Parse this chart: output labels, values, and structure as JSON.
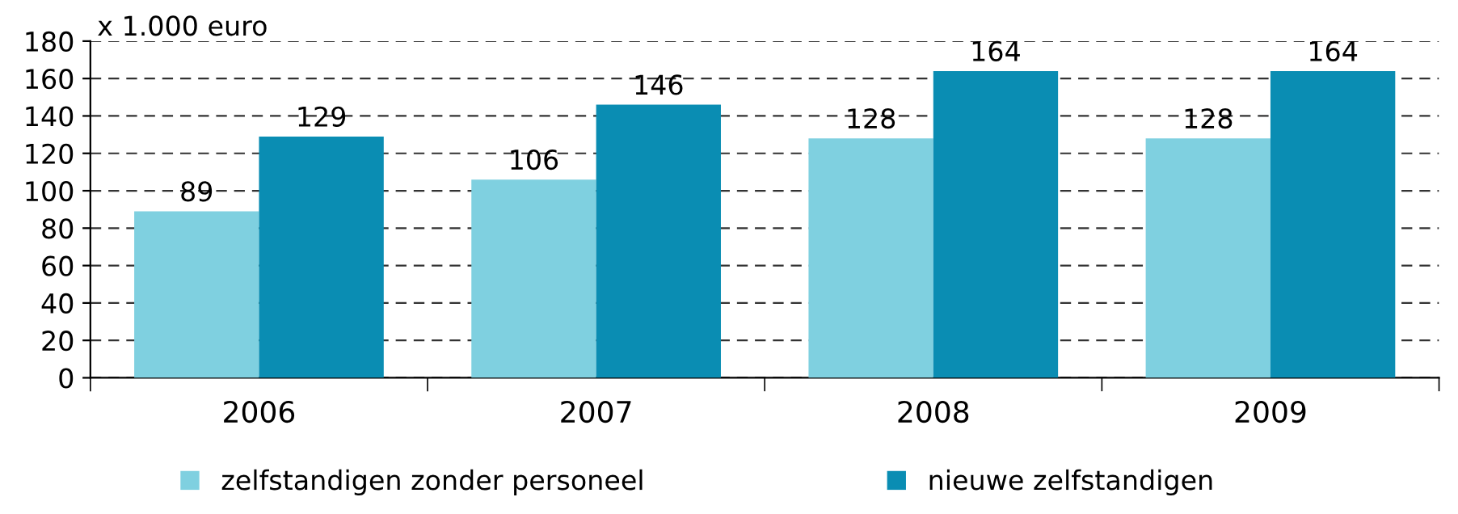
{
  "chart_data": {
    "type": "bar",
    "ylabel": "x 1.000 euro",
    "categories": [
      "2006",
      "2007",
      "2008",
      "2009"
    ],
    "series": [
      {
        "name": "zelfstandigen zonder personeel",
        "color": "#7fd0e0",
        "values": [
          89,
          106,
          128,
          128
        ]
      },
      {
        "name": "nieuwe zelfstandigen",
        "color": "#0a8db3",
        "values": [
          129,
          146,
          164,
          164
        ]
      }
    ],
    "ylim": [
      0,
      180
    ],
    "yticks": [
      0,
      20,
      40,
      60,
      80,
      100,
      120,
      140,
      160,
      180
    ],
    "grid": "y",
    "legend": "bottom",
    "data_labels": true
  }
}
